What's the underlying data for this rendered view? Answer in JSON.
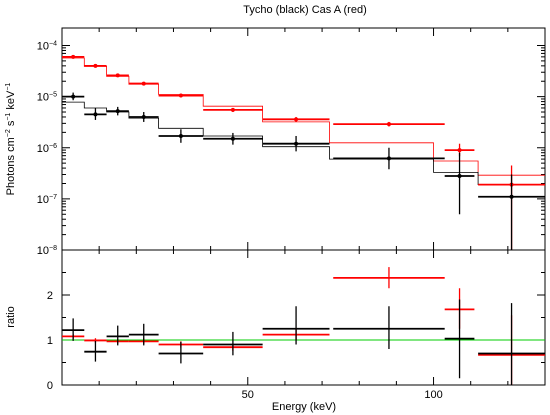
{
  "chart_data": [
    {
      "type": "scatter",
      "panel": "top",
      "title": "Tycho (black) Cas A (red)",
      "xlabel": "",
      "ylabel_parts": {
        "base": "Photons cm",
        "exp1": "−2",
        "mid": " s",
        "exp2": "−1",
        "end": " keV",
        "exp3": "−1"
      },
      "yscale": "log",
      "xlim": [
        0,
        130
      ],
      "ylim": [
        1e-08,
        0.00022
      ],
      "y_ticks": [
        {
          "value": 0.0001,
          "base": "10",
          "exp": "−4"
        },
        {
          "value": 1e-05,
          "base": "10",
          "exp": "−5"
        },
        {
          "value": 1e-06,
          "base": "10",
          "exp": "−6"
        },
        {
          "value": 1e-07,
          "base": "10",
          "exp": "−7"
        },
        {
          "value": 1e-08,
          "base": "10",
          "exp": "−8"
        }
      ],
      "series": [
        {
          "color": "#ff0000",
          "points": [
            {
              "x": 3,
              "xerr": 3,
              "y": 6e-05,
              "ylo": 5.7e-05,
              "yhi": 6.3e-05
            },
            {
              "x": 9,
              "xerr": 3,
              "y": 4e-05,
              "ylo": 3.8e-05,
              "yhi": 4.2e-05
            },
            {
              "x": 15,
              "xerr": 3,
              "y": 2.6e-05,
              "ylo": 2.45e-05,
              "yhi": 2.75e-05
            },
            {
              "x": 22,
              "xerr": 4,
              "y": 1.8e-05,
              "ylo": 1.7e-05,
              "yhi": 1.9e-05
            },
            {
              "x": 32,
              "xerr": 6,
              "y": 1.05e-05,
              "ylo": 9.7e-06,
              "yhi": 1.13e-05
            },
            {
              "x": 46,
              "xerr": 8,
              "y": 5.5e-06,
              "ylo": 5e-06,
              "yhi": 6e-06
            },
            {
              "x": 63,
              "xerr": 9,
              "y": 3.6e-06,
              "ylo": 3.2e-06,
              "yhi": 4e-06
            },
            {
              "x": 88,
              "xerr": 15,
              "y": 2.9e-06,
              "ylo": 2.6e-06,
              "yhi": 3.2e-06
            },
            {
              "x": 107,
              "xerr": 4,
              "y": 9e-07,
              "ylo": 6.8e-07,
              "yhi": 1.2e-06
            },
            {
              "x": 121,
              "xerr": 9,
              "y": 1.9e-07,
              "ylo": 1e-08,
              "yhi": 4.5e-07
            }
          ],
          "model_steps": [
            {
              "x0": 0,
              "x1": 6,
              "y": 5.7e-05
            },
            {
              "x0": 6,
              "x1": 12,
              "y": 3.9e-05
            },
            {
              "x0": 12,
              "x1": 18,
              "y": 2.5e-05
            },
            {
              "x0": 18,
              "x1": 26,
              "y": 1.75e-05
            },
            {
              "x0": 26,
              "x1": 38,
              "y": 1.1e-05
            },
            {
              "x0": 38,
              "x1": 54,
              "y": 6.5e-06
            },
            {
              "x0": 54,
              "x1": 72,
              "y": 3.2e-06
            },
            {
              "x0": 72,
              "x1": 100,
              "y": 1.25e-06
            },
            {
              "x0": 100,
              "x1": 112,
              "y": 5.5e-07
            },
            {
              "x0": 112,
              "x1": 130,
              "y": 2.9e-07
            }
          ]
        },
        {
          "color": "#000000",
          "points": [
            {
              "x": 3,
              "xerr": 3,
              "y": 1e-05,
              "ylo": 8.5e-06,
              "yhi": 1.2e-05
            },
            {
              "x": 9,
              "xerr": 3,
              "y": 4.5e-06,
              "ylo": 3.5e-06,
              "yhi": 6e-06
            },
            {
              "x": 15,
              "xerr": 3,
              "y": 5.2e-06,
              "ylo": 4.3e-06,
              "yhi": 6.3e-06
            },
            {
              "x": 22,
              "xerr": 4,
              "y": 4e-06,
              "ylo": 3.2e-06,
              "yhi": 5e-06
            },
            {
              "x": 32,
              "xerr": 6,
              "y": 1.7e-06,
              "ylo": 1.25e-06,
              "yhi": 2.3e-06
            },
            {
              "x": 46,
              "xerr": 8,
              "y": 1.5e-06,
              "ylo": 1.15e-06,
              "yhi": 1.95e-06
            },
            {
              "x": 63,
              "xerr": 9,
              "y": 1.2e-06,
              "ylo": 8.5e-07,
              "yhi": 1.7e-06
            },
            {
              "x": 88,
              "xerr": 15,
              "y": 6.2e-07,
              "ylo": 3.8e-07,
              "yhi": 1e-06
            },
            {
              "x": 107,
              "xerr": 4,
              "y": 2.8e-07,
              "ylo": 5e-08,
              "yhi": 8e-07
            },
            {
              "x": 121,
              "xerr": 9,
              "y": 1.1e-07,
              "ylo": 1e-08,
              "yhi": 3e-07
            }
          ],
          "model_steps": [
            {
              "x0": 0,
              "x1": 6,
              "y": 7.8e-06
            },
            {
              "x0": 6,
              "x1": 12,
              "y": 6e-06
            },
            {
              "x0": 12,
              "x1": 18,
              "y": 5e-06
            },
            {
              "x0": 18,
              "x1": 26,
              "y": 3.8e-06
            },
            {
              "x0": 26,
              "x1": 38,
              "y": 2.4e-06
            },
            {
              "x0": 38,
              "x1": 54,
              "y": 1.7e-06
            },
            {
              "x0": 54,
              "x1": 72,
              "y": 1.05e-06
            },
            {
              "x0": 72,
              "x1": 100,
              "y": 6e-07
            },
            {
              "x0": 100,
              "x1": 112,
              "y": 3.3e-07
            },
            {
              "x0": 112,
              "x1": 130,
              "y": 1.9e-07
            }
          ]
        }
      ]
    },
    {
      "type": "scatter",
      "panel": "bottom",
      "title": "",
      "xlabel": "Energy (keV)",
      "ylabel": "ratio",
      "yscale": "linear",
      "xlim": [
        0,
        130
      ],
      "ylim": [
        0,
        3
      ],
      "x_ticks": [
        {
          "value": 50,
          "label": "50"
        },
        {
          "value": 100,
          "label": "100"
        }
      ],
      "y_ticks": [
        {
          "value": 0,
          "label": "0"
        },
        {
          "value": 1,
          "label": "1"
        },
        {
          "value": 2,
          "label": "2"
        }
      ],
      "reference_line": {
        "y": 1,
        "color": "#00cc00"
      },
      "series": [
        {
          "color": "#ff0000",
          "points": [
            {
              "x": 3,
              "xerr": 3,
              "y": 1.08,
              "ylo": 1.03,
              "yhi": 1.13
            },
            {
              "x": 9,
              "xerr": 3,
              "y": 0.99,
              "ylo": 0.94,
              "yhi": 1.04
            },
            {
              "x": 15,
              "xerr": 3,
              "y": 0.97,
              "ylo": 0.92,
              "yhi": 1.02
            },
            {
              "x": 22,
              "xerr": 4,
              "y": 0.97,
              "ylo": 0.91,
              "yhi": 1.03
            },
            {
              "x": 32,
              "xerr": 6,
              "y": 0.9,
              "ylo": 0.83,
              "yhi": 0.97
            },
            {
              "x": 46,
              "xerr": 8,
              "y": 0.84,
              "ylo": 0.76,
              "yhi": 0.92
            },
            {
              "x": 63,
              "xerr": 9,
              "y": 1.12,
              "ylo": 1.0,
              "yhi": 1.25
            },
            {
              "x": 88,
              "xerr": 15,
              "y": 2.38,
              "ylo": 2.15,
              "yhi": 2.62
            },
            {
              "x": 107,
              "xerr": 4,
              "y": 1.68,
              "ylo": 1.25,
              "yhi": 2.15
            },
            {
              "x": 121,
              "xerr": 9,
              "y": 0.67,
              "ylo": 0.0,
              "yhi": 1.55
            }
          ]
        },
        {
          "color": "#000000",
          "points": [
            {
              "x": 3,
              "xerr": 3,
              "y": 1.22,
              "ylo": 0.98,
              "yhi": 1.48
            },
            {
              "x": 9,
              "xerr": 3,
              "y": 0.74,
              "ylo": 0.52,
              "yhi": 0.98
            },
            {
              "x": 15,
              "xerr": 3,
              "y": 1.08,
              "ylo": 0.88,
              "yhi": 1.32
            },
            {
              "x": 22,
              "xerr": 4,
              "y": 1.12,
              "ylo": 0.88,
              "yhi": 1.36
            },
            {
              "x": 32,
              "xerr": 6,
              "y": 0.7,
              "ylo": 0.48,
              "yhi": 0.96
            },
            {
              "x": 46,
              "xerr": 8,
              "y": 0.9,
              "ylo": 0.66,
              "yhi": 1.18
            },
            {
              "x": 63,
              "xerr": 9,
              "y": 1.25,
              "ylo": 0.9,
              "yhi": 1.75
            },
            {
              "x": 88,
              "xerr": 15,
              "y": 1.25,
              "ylo": 0.8,
              "yhi": 1.75
            },
            {
              "x": 107,
              "xerr": 4,
              "y": 1.03,
              "ylo": 0.15,
              "yhi": 1.9
            },
            {
              "x": 121,
              "xerr": 9,
              "y": 0.7,
              "ylo": 0.0,
              "yhi": 1.82
            }
          ]
        }
      ]
    }
  ]
}
